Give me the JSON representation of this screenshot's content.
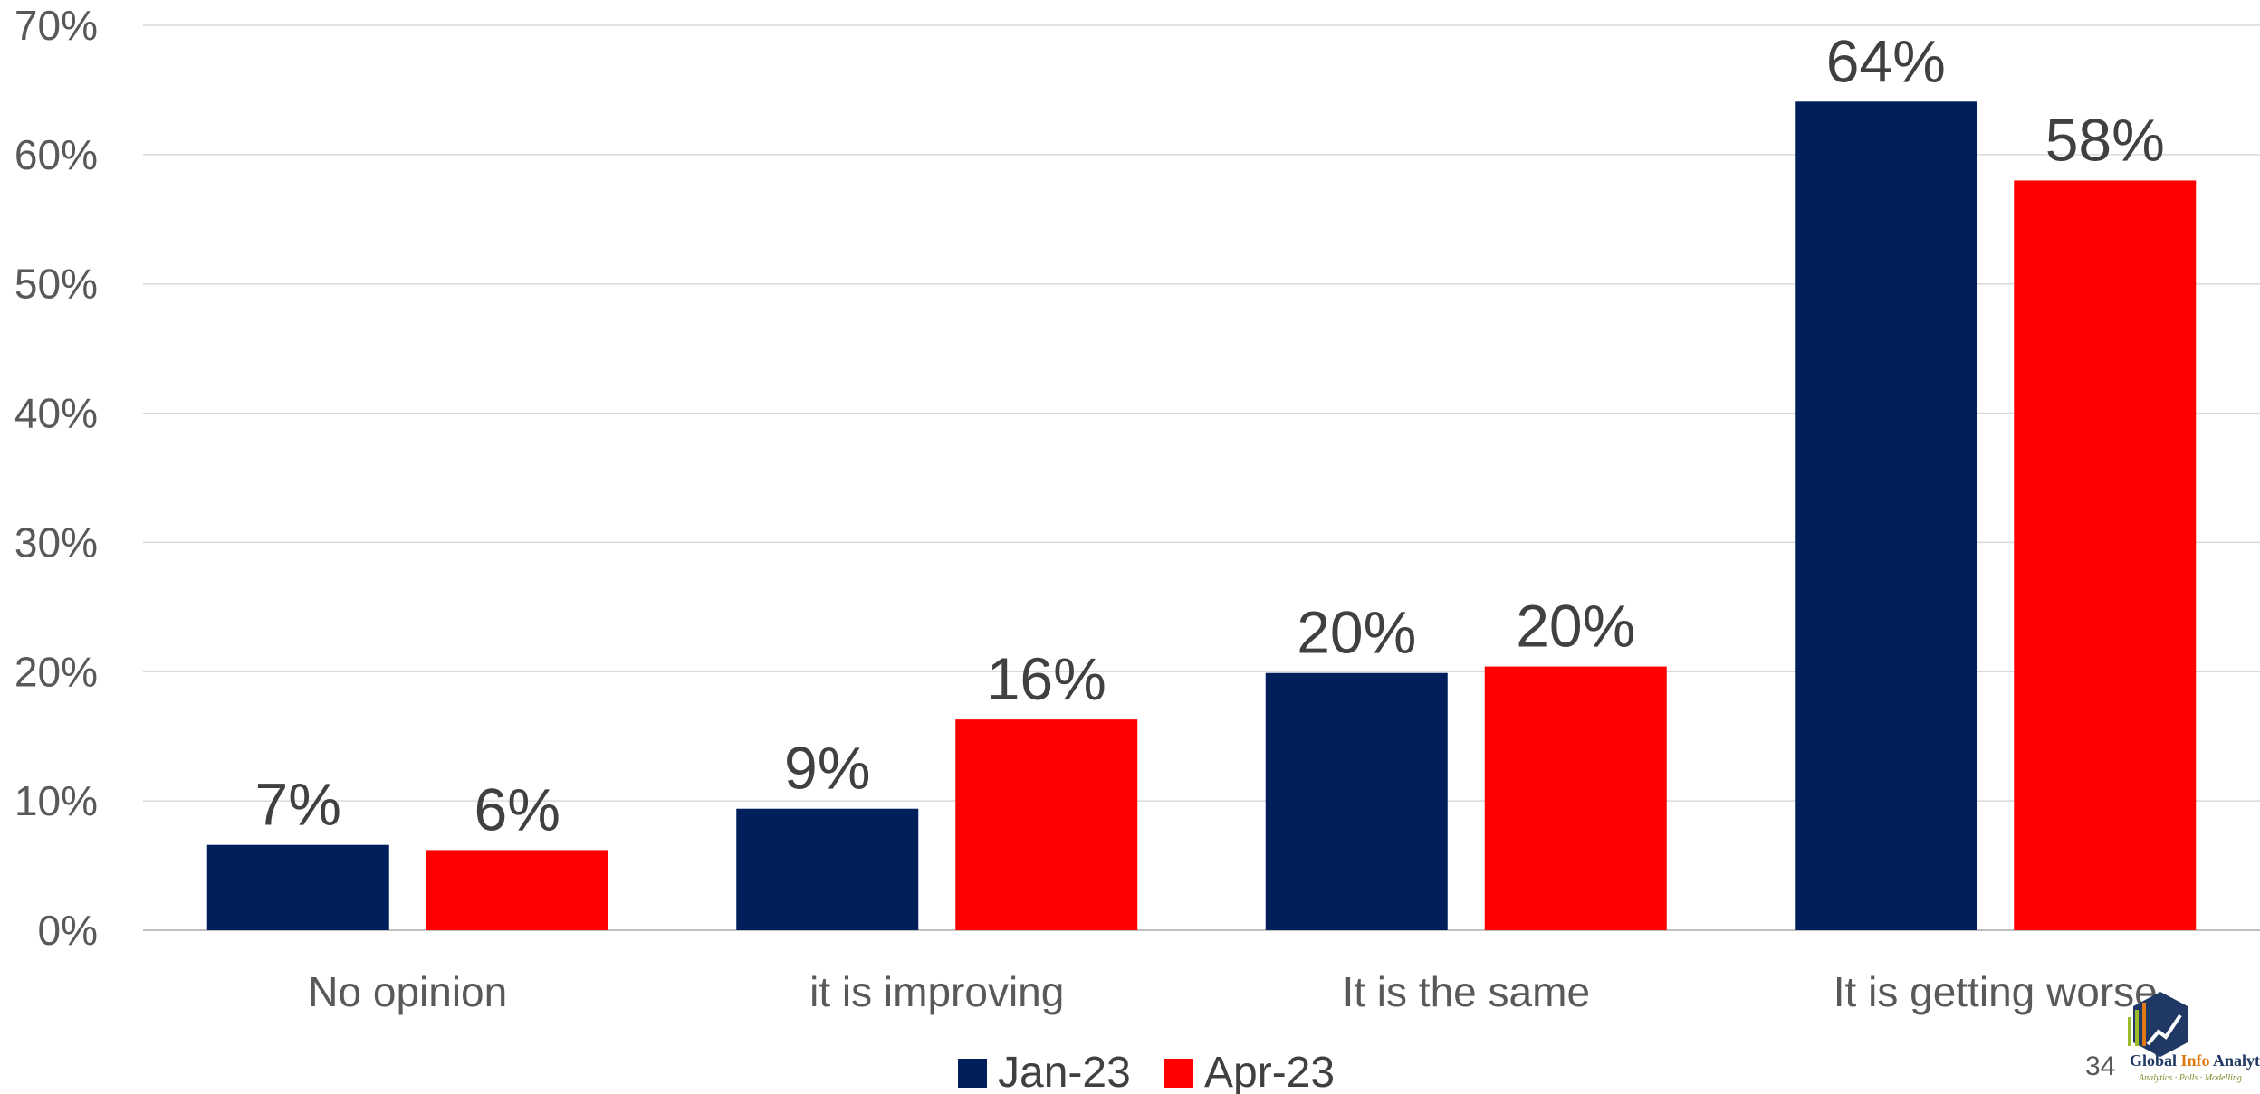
{
  "chart_data": {
    "type": "bar",
    "categories": [
      "No opinion",
      "it is improving",
      "It is the same",
      "It is getting worse"
    ],
    "series": [
      {
        "name": "Jan-23",
        "color": "#001F5B",
        "values": [
          6.6,
          9.4,
          19.9,
          64.1
        ],
        "labels": [
          "7%",
          "9%",
          "20%",
          "64%"
        ]
      },
      {
        "name": "Apr-23",
        "color": "#FF0000",
        "values": [
          6.2,
          16.3,
          20.4,
          58.0
        ],
        "labels": [
          "6%",
          "16%",
          "20%",
          "58%"
        ]
      }
    ],
    "y_ticks": [
      "0%",
      "10%",
      "20%",
      "30%",
      "40%",
      "50%",
      "60%",
      "70%"
    ],
    "ylim": [
      0,
      70
    ],
    "grid": true,
    "legend_position": "bottom-center"
  },
  "page_number": "34",
  "logo": {
    "text_parts": [
      "Global ",
      "Info",
      " Analytics"
    ],
    "tagline": "Analytics · Polls · Modelling",
    "colors": {
      "global": "#1F3864",
      "info": "#E07A10",
      "analytics": "#1F3864",
      "tagline": "#7F8C2A"
    }
  }
}
